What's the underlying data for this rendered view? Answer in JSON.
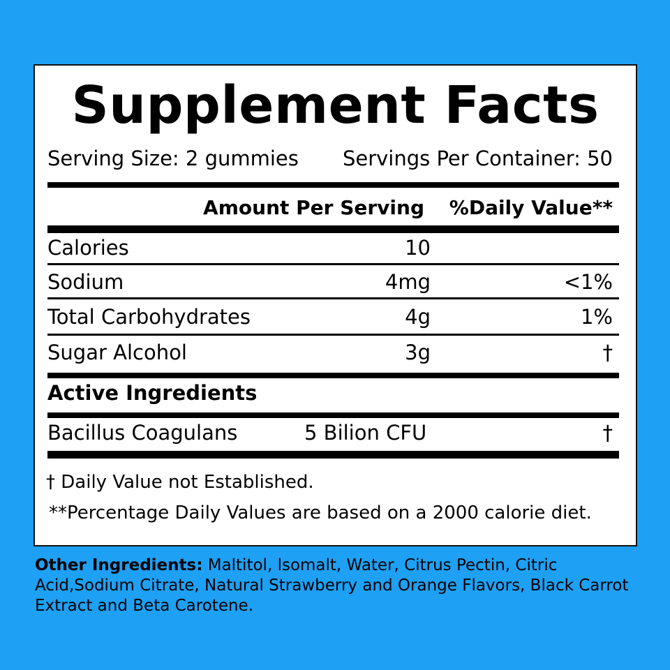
{
  "title": "Supplement Facts",
  "serving_size": "Serving Size: 2 gummies",
  "servings_per_container": "Servings Per Container: 50",
  "header": {
    "amount": "Amount Per Serving",
    "daily_value": "%Daily Value**"
  },
  "nutrients": [
    {
      "name": "Calories",
      "amount": "10",
      "dv": ""
    },
    {
      "name": "Sodium",
      "amount": "4mg",
      "dv": "<1%"
    },
    {
      "name": "Total Carbohydrates",
      "amount": "4g",
      "dv": "1%"
    },
    {
      "name": "Sugar Alcohol",
      "amount": "3g",
      "dv": "†"
    }
  ],
  "active_heading": "Active Ingredients",
  "active": [
    {
      "name": "Bacillus Coagulans",
      "amount": "5 Bilion CFU",
      "dv": "†"
    }
  ],
  "footnotes": {
    "dagger": "† Daily Value not Established.",
    "percent": "**Percentage Daily Values are based on a 2000 calorie diet."
  },
  "other_ingredients": {
    "label": "Other Ingredients:",
    "text": " Maltitol, lsomalt, Water, Citrus Pectin, Citric Acid,Sodium Citrate, Natural Strawberry and Orange Flavors, Black Carrot Extract and Beta Carotene."
  },
  "colors": {
    "background": "#1ea0f5",
    "panel": "#ffffff",
    "rule": "#000000"
  }
}
